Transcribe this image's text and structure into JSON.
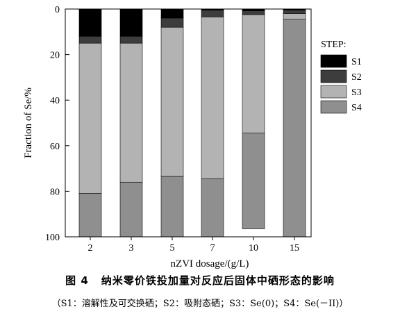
{
  "chart_data": {
    "type": "bar",
    "stacked": true,
    "categories": [
      "2",
      "3",
      "5",
      "7",
      "10",
      "15"
    ],
    "series": [
      {
        "name": "S1",
        "values": [
          12,
          12,
          4,
          0.5,
          0.8,
          0.5
        ],
        "color": "#000000"
      },
      {
        "name": "S2",
        "values": [
          3,
          3,
          4,
          3,
          1.7,
          1.5
        ],
        "color": "#3d3d3d"
      },
      {
        "name": "S3",
        "values": [
          66,
          61,
          65.5,
          71,
          52,
          2.5
        ],
        "color": "#b3b3b3"
      },
      {
        "name": "S4",
        "values": [
          19,
          24,
          26.5,
          25.5,
          42,
          95.5
        ],
        "color": "#8f8f8f"
      }
    ],
    "xlabel": "nZVI dosage/(g/L)",
    "ylabel": "Fraction of Se/%",
    "ylim": [
      0,
      100
    ],
    "y_inverted": true,
    "yticks": [
      0,
      20,
      40,
      60,
      80,
      100
    ],
    "legend_title": "STEP:",
    "legend_position": "right"
  },
  "caption": {
    "figure_number": "图 4",
    "title": "纳米零价铁投加量对反应后固体中硒形态的影响",
    "note": "（S1：溶解性及可交换硒；S2：吸附态硒；S3：Se(0)；S4：Se(－II)）"
  }
}
